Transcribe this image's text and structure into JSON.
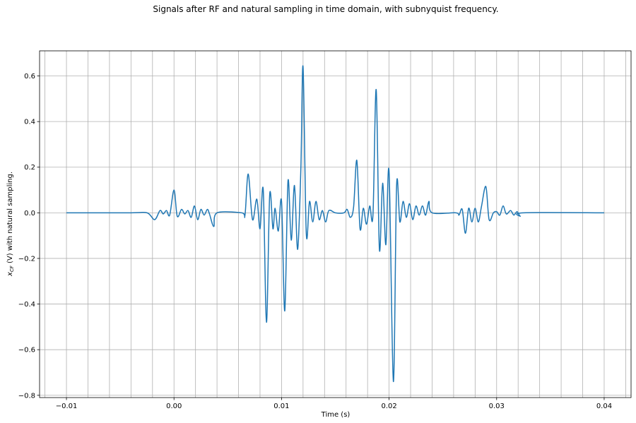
{
  "chart_data": {
    "type": "line",
    "title": "Signals after RF and natural sampling in time domain, with subnyquist frequency.",
    "xlabel": "Time (s)",
    "ylabel_main": "x",
    "ylabel_sub": "CF",
    "ylabel_rest": " (V) with natural sampling.",
    "xlim": [
      -0.0125,
      0.0425
    ],
    "ylim": [
      -0.81,
      0.71
    ],
    "x_ticks": [
      -0.01,
      0.0,
      0.01,
      0.02,
      0.03,
      0.04
    ],
    "x_tick_labels": [
      "−0.01",
      "0.00",
      "0.01",
      "0.02",
      "0.03",
      "0.04"
    ],
    "x_minor_grid_step": 0.002,
    "y_ticks": [
      -0.8,
      -0.6,
      -0.4,
      -0.2,
      0.0,
      0.2,
      0.4,
      0.6
    ],
    "y_tick_labels": [
      "−0.8",
      "−0.6",
      "−0.4",
      "−0.2",
      "0.0",
      "0.2",
      "0.4",
      "0.6"
    ],
    "grid": true,
    "series": [
      {
        "color": "#1f77b4",
        "points": [
          [
            -0.01,
            0.0
          ],
          [
            -0.004,
            0.0
          ],
          [
            -0.0025,
            0.0
          ],
          [
            -0.0018,
            -0.03
          ],
          [
            -0.0013,
            0.01
          ],
          [
            -0.001,
            -0.005
          ],
          [
            -0.0007,
            0.01
          ],
          [
            -0.0004,
            -0.01
          ],
          [
            0.0,
            0.1
          ],
          [
            0.0003,
            -0.015
          ],
          [
            0.0007,
            0.015
          ],
          [
            0.001,
            -0.005
          ],
          [
            0.0013,
            0.01
          ],
          [
            0.0016,
            -0.02
          ],
          [
            0.0019,
            0.03
          ],
          [
            0.0022,
            -0.03
          ],
          [
            0.0025,
            0.015
          ],
          [
            0.0028,
            -0.01
          ],
          [
            0.0031,
            0.015
          ],
          [
            0.0033,
            -0.005
          ],
          [
            0.0037,
            -0.06
          ],
          [
            0.004,
            0.0
          ],
          [
            0.0063,
            0.0
          ],
          [
            0.0066,
            -0.01
          ],
          [
            0.0069,
            0.17
          ],
          [
            0.0073,
            -0.03
          ],
          [
            0.0077,
            0.06
          ],
          [
            0.008,
            -0.07
          ],
          [
            0.0083,
            0.1
          ],
          [
            0.0086,
            -0.48
          ],
          [
            0.0089,
            0.08
          ],
          [
            0.0092,
            -0.07
          ],
          [
            0.0094,
            0.02
          ],
          [
            0.0097,
            -0.08
          ],
          [
            0.01,
            0.05
          ],
          [
            0.0103,
            -0.43
          ],
          [
            0.0106,
            0.14
          ],
          [
            0.0109,
            -0.12
          ],
          [
            0.0112,
            0.12
          ],
          [
            0.0115,
            -0.16
          ],
          [
            0.0118,
            0.2
          ],
          [
            0.012,
            0.64
          ],
          [
            0.0123,
            -0.09
          ],
          [
            0.0126,
            0.05
          ],
          [
            0.0129,
            -0.04
          ],
          [
            0.0132,
            0.05
          ],
          [
            0.0135,
            -0.03
          ],
          [
            0.0138,
            0.01
          ],
          [
            0.0141,
            -0.04
          ],
          [
            0.0144,
            0.01
          ],
          [
            0.015,
            0.0
          ],
          [
            0.0158,
            0.0
          ],
          [
            0.0161,
            0.015
          ],
          [
            0.0164,
            -0.02
          ],
          [
            0.0167,
            0.025
          ],
          [
            0.017,
            0.23
          ],
          [
            0.0173,
            -0.07
          ],
          [
            0.0176,
            0.02
          ],
          [
            0.0179,
            -0.05
          ],
          [
            0.0182,
            0.03
          ],
          [
            0.0185,
            -0.01
          ],
          [
            0.0188,
            0.54
          ],
          [
            0.0191,
            -0.16
          ],
          [
            0.0194,
            0.13
          ],
          [
            0.0197,
            -0.14
          ],
          [
            0.02,
            0.18
          ],
          [
            0.0204,
            -0.74
          ],
          [
            0.0207,
            0.12
          ],
          [
            0.021,
            -0.04
          ],
          [
            0.0213,
            0.05
          ],
          [
            0.0216,
            -0.02
          ],
          [
            0.0219,
            0.04
          ],
          [
            0.0222,
            -0.03
          ],
          [
            0.0225,
            0.03
          ],
          [
            0.0228,
            -0.01
          ],
          [
            0.0231,
            0.03
          ],
          [
            0.0234,
            -0.01
          ],
          [
            0.0237,
            0.05
          ],
          [
            0.024,
            0.0
          ],
          [
            0.0262,
            0.0
          ],
          [
            0.0265,
            -0.01
          ],
          [
            0.0268,
            0.015
          ],
          [
            0.0271,
            -0.09
          ],
          [
            0.0274,
            0.02
          ],
          [
            0.0277,
            -0.04
          ],
          [
            0.028,
            0.02
          ],
          [
            0.0283,
            -0.04
          ],
          [
            0.0286,
            0.03
          ],
          [
            0.029,
            0.115
          ],
          [
            0.0293,
            -0.03
          ],
          [
            0.0297,
            0.0
          ],
          [
            0.03,
            0.005
          ],
          [
            0.0303,
            -0.01
          ],
          [
            0.0306,
            0.03
          ],
          [
            0.0309,
            -0.005
          ],
          [
            0.0313,
            0.01
          ],
          [
            0.0316,
            -0.01
          ],
          [
            0.0319,
            0.005
          ],
          [
            0.0322,
            -0.015
          ],
          [
            0.0325,
            0.0
          ],
          [
            0.04,
            0.0
          ]
        ]
      }
    ]
  }
}
